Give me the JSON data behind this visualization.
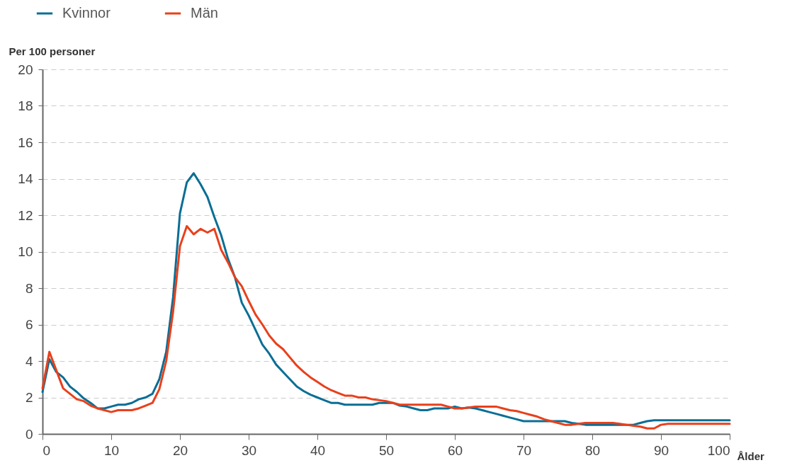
{
  "chart_data": {
    "type": "line",
    "xlabel": "Ålder",
    "ylabel": "Per 100 personer",
    "x": [
      0,
      1,
      2,
      3,
      4,
      5,
      6,
      7,
      8,
      9,
      10,
      11,
      12,
      13,
      14,
      15,
      16,
      17,
      18,
      19,
      20,
      21,
      22,
      23,
      24,
      25,
      26,
      27,
      28,
      29,
      30,
      31,
      32,
      33,
      34,
      35,
      36,
      37,
      38,
      39,
      40,
      41,
      42,
      43,
      44,
      45,
      46,
      47,
      48,
      49,
      50,
      51,
      52,
      53,
      54,
      55,
      56,
      57,
      58,
      59,
      60,
      61,
      62,
      63,
      64,
      65,
      66,
      67,
      68,
      69,
      70,
      71,
      72,
      73,
      74,
      75,
      76,
      77,
      78,
      79,
      80,
      81,
      82,
      83,
      84,
      85,
      86,
      87,
      88,
      89,
      90,
      91,
      92,
      93,
      94,
      95,
      96,
      97,
      98,
      99,
      100
    ],
    "series": [
      {
        "name": "Kvinnor",
        "color": "#0a6e94",
        "values": [
          2.3,
          4.1,
          3.4,
          3.1,
          2.6,
          2.3,
          1.95,
          1.7,
          1.4,
          1.4,
          1.5,
          1.6,
          1.6,
          1.7,
          1.9,
          2.0,
          2.2,
          3.0,
          4.5,
          7.5,
          12.1,
          13.8,
          14.3,
          13.7,
          13.0,
          11.9,
          10.9,
          9.6,
          8.6,
          7.2,
          6.5,
          5.7,
          4.9,
          4.4,
          3.8,
          3.4,
          3.0,
          2.6,
          2.35,
          2.15,
          2.0,
          1.85,
          1.7,
          1.7,
          1.6,
          1.6,
          1.6,
          1.6,
          1.6,
          1.7,
          1.7,
          1.7,
          1.55,
          1.5,
          1.4,
          1.3,
          1.3,
          1.4,
          1.4,
          1.4,
          1.5,
          1.4,
          1.45,
          1.4,
          1.3,
          1.2,
          1.1,
          1.0,
          0.9,
          0.8,
          0.7,
          0.7,
          0.7,
          0.7,
          0.7,
          0.7,
          0.7,
          0.6,
          0.55,
          0.5,
          0.5,
          0.5,
          0.5,
          0.5,
          0.5,
          0.5,
          0.5,
          0.6,
          0.7,
          0.75,
          0.75,
          0.75,
          0.75,
          0.75,
          0.75,
          0.75,
          0.75,
          0.75,
          0.75,
          0.75,
          0.75
        ]
      },
      {
        "name": "Män",
        "color": "#e8401c",
        "values": [
          2.5,
          4.5,
          3.5,
          2.5,
          2.2,
          1.9,
          1.8,
          1.55,
          1.4,
          1.3,
          1.2,
          1.3,
          1.3,
          1.3,
          1.4,
          1.55,
          1.7,
          2.45,
          4.0,
          6.7,
          10.3,
          11.4,
          10.95,
          11.25,
          11.05,
          11.25,
          10.1,
          9.4,
          8.6,
          8.1,
          7.3,
          6.55,
          6.0,
          5.4,
          4.95,
          4.65,
          4.2,
          3.75,
          3.4,
          3.1,
          2.85,
          2.6,
          2.4,
          2.25,
          2.1,
          2.1,
          2.0,
          2.0,
          1.9,
          1.85,
          1.8,
          1.7,
          1.6,
          1.6,
          1.6,
          1.6,
          1.6,
          1.6,
          1.6,
          1.5,
          1.4,
          1.4,
          1.45,
          1.5,
          1.5,
          1.5,
          1.5,
          1.4,
          1.3,
          1.25,
          1.15,
          1.05,
          0.95,
          0.8,
          0.7,
          0.6,
          0.5,
          0.5,
          0.55,
          0.6,
          0.6,
          0.6,
          0.6,
          0.6,
          0.55,
          0.5,
          0.45,
          0.4,
          0.3,
          0.3,
          0.5,
          0.55,
          0.55,
          0.55,
          0.55,
          0.55,
          0.55,
          0.55,
          0.55,
          0.55,
          0.55
        ]
      }
    ],
    "xlim": [
      0,
      100
    ],
    "xticks": [
      0,
      10,
      20,
      30,
      40,
      50,
      60,
      70,
      80,
      90,
      100
    ],
    "ylim": [
      0,
      20
    ],
    "yticks": [
      0,
      2,
      4,
      6,
      8,
      10,
      12,
      14,
      16,
      18,
      20
    ],
    "grid": "y",
    "legend": "top left",
    "line_style": "solid",
    "marker": "none"
  }
}
